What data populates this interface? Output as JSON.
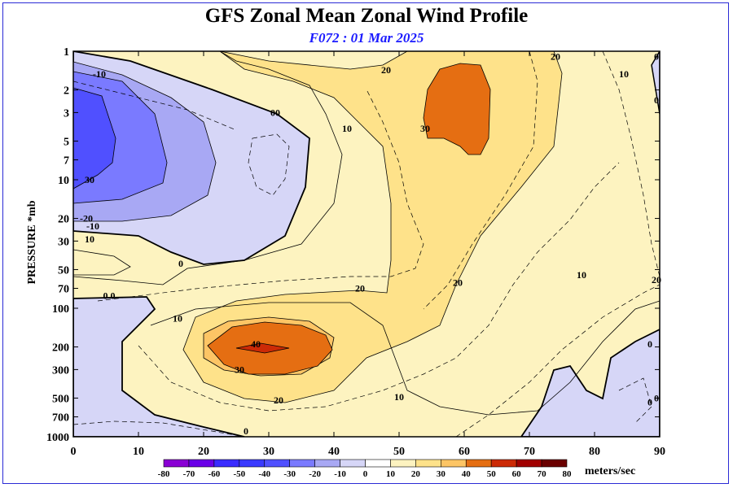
{
  "chart_data": {
    "type": "contour",
    "title": "GFS Zonal Mean Zonal Wind Profile",
    "subtitle": "F072 : 01 Mar 2025",
    "ylabel": "PRESSURE *mb",
    "xlim": [
      0,
      90
    ],
    "ylim": [
      1000,
      1
    ],
    "y_scale": "log",
    "x_ticks": [
      0,
      10,
      20,
      30,
      40,
      50,
      60,
      70,
      80,
      90
    ],
    "y_ticks": [
      1,
      2,
      3,
      5,
      7,
      10,
      20,
      30,
      50,
      70,
      100,
      200,
      300,
      500,
      700,
      1000
    ],
    "colorbar": {
      "levels": [
        -80,
        -70,
        -60,
        -50,
        -40,
        -30,
        -20,
        -10,
        0,
        10,
        20,
        30,
        40,
        50,
        60,
        70,
        80
      ],
      "colors": [
        "#8a00d4",
        "#6a00e8",
        "#3a2cff",
        "#3a3aff",
        "#5050ff",
        "#7a7aff",
        "#a8a8f4",
        "#d6d6f7",
        "#ffffff",
        "#fdf3c0",
        "#fee28a",
        "#fdc565",
        "#e56e12",
        "#cc2a06",
        "#a10000",
        "#6b0000",
        "#8c6d22"
      ],
      "units": "meters/sec"
    },
    "contour_labels": [
      {
        "text": "-10",
        "x": 4,
        "y": 1.5
      },
      {
        "text": "30",
        "x": 2.5,
        "y": 10
      },
      {
        "text": "-20",
        "x": 2,
        "y": 20
      },
      {
        "text": "-10",
        "x": 3,
        "y": 23
      },
      {
        "text": "10",
        "x": 2.5,
        "y": 29
      },
      {
        "text": "0",
        "x": 16.5,
        "y": 45
      },
      {
        "text": "0 0",
        "x": 5.5,
        "y": 80
      },
      {
        "text": "00",
        "x": 31,
        "y": 3
      },
      {
        "text": "10",
        "x": 42,
        "y": 4
      },
      {
        "text": "20",
        "x": 48,
        "y": 1.4
      },
      {
        "text": "30",
        "x": 54,
        "y": 4
      },
      {
        "text": "20",
        "x": 74,
        "y": 1.1
      },
      {
        "text": "10",
        "x": 84.5,
        "y": 1.5
      },
      {
        "text": "0",
        "x": 90,
        "y": 1.1
      },
      {
        "text": "0",
        "x": 90,
        "y": 2.4
      },
      {
        "text": "20",
        "x": 44,
        "y": 70
      },
      {
        "text": "20",
        "x": 59,
        "y": 63
      },
      {
        "text": "10",
        "x": 78,
        "y": 55
      },
      {
        "text": "20",
        "x": 90,
        "y": 60
      },
      {
        "text": "10",
        "x": 16,
        "y": 120
      },
      {
        "text": "40",
        "x": 28,
        "y": 190
      },
      {
        "text": "30",
        "x": 25.5,
        "y": 300
      },
      {
        "text": "20",
        "x": 31.5,
        "y": 520
      },
      {
        "text": "10",
        "x": 50,
        "y": 490
      },
      {
        "text": "0",
        "x": 88.5,
        "y": 190
      },
      {
        "text": "0",
        "x": 88.5,
        "y": 540
      },
      {
        "text": "0",
        "x": 90,
        "y": 500
      },
      {
        "text": "0",
        "x": 26.5,
        "y": 900
      }
    ]
  }
}
